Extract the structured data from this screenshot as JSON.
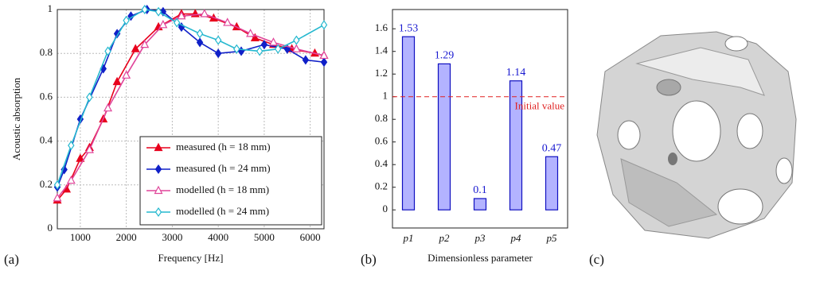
{
  "chart_data": [
    {
      "type": "line",
      "panel_label": "(a)",
      "x_label": "Frequency [Hz]",
      "y_label": "Acoustic absorption",
      "xlim": [
        500,
        6300
      ],
      "ylim": [
        0,
        1
      ],
      "xticks": [
        1000,
        2000,
        3000,
        4000,
        5000,
        6000
      ],
      "yticks": [
        0,
        0.2,
        0.4,
        0.6,
        0.8,
        1
      ],
      "grid": true,
      "legend": "lower right",
      "series": [
        {
          "name": "measured (h = 18 mm)",
          "color": "#e8001c",
          "marker": "triangle",
          "filled": true,
          "x": [
            500,
            700,
            1000,
            1200,
            1500,
            1800,
            2200,
            2700,
            3200,
            3500,
            3900,
            4400,
            4800,
            5200,
            5600,
            6100,
            6300
          ],
          "values": [
            0.13,
            0.18,
            0.32,
            0.37,
            0.5,
            0.67,
            0.82,
            0.92,
            0.98,
            0.98,
            0.96,
            0.92,
            0.87,
            0.84,
            0.82,
            0.8,
            0.79
          ]
        },
        {
          "name": "measured (h = 24 mm)",
          "color": "#1020c8",
          "marker": "diamond",
          "filled": true,
          "x": [
            500,
            650,
            1000,
            1500,
            1800,
            2100,
            2450,
            2800,
            3200,
            3600,
            4000,
            4500,
            5000,
            5500,
            5900,
            6300
          ],
          "values": [
            0.19,
            0.27,
            0.5,
            0.73,
            0.89,
            0.97,
            1.0,
            0.99,
            0.92,
            0.85,
            0.8,
            0.81,
            0.84,
            0.82,
            0.77,
            0.76
          ]
        },
        {
          "name": "modelled (h = 18 mm)",
          "color": "#e0459a",
          "marker": "triangle",
          "filled": false,
          "x": [
            500,
            800,
            1200,
            1600,
            2000,
            2400,
            2800,
            3200,
            3700,
            4200,
            4700,
            5200,
            5700,
            6300
          ],
          "values": [
            0.14,
            0.22,
            0.36,
            0.55,
            0.7,
            0.84,
            0.93,
            0.97,
            0.98,
            0.94,
            0.89,
            0.85,
            0.82,
            0.79
          ]
        },
        {
          "name": "modelled (h = 24 mm)",
          "color": "#25b8cf",
          "marker": "diamond",
          "filled": false,
          "x": [
            500,
            800,
            1200,
            1600,
            2000,
            2400,
            2700,
            3100,
            3600,
            4000,
            4400,
            4900,
            5300,
            5700,
            6300
          ],
          "values": [
            0.2,
            0.38,
            0.6,
            0.81,
            0.95,
            1.0,
            0.99,
            0.94,
            0.89,
            0.86,
            0.82,
            0.81,
            0.82,
            0.86,
            0.93
          ]
        }
      ]
    },
    {
      "type": "bar",
      "panel_label": "(b)",
      "x_label": "Dimensionless parameter",
      "categories": [
        "p1",
        "p2",
        "p3",
        "p4",
        "p5"
      ],
      "values": [
        1.53,
        1.29,
        0.1,
        1.14,
        0.47
      ],
      "color": "#b3b3ff",
      "edge_color": "#1010c0",
      "label_color": "#1a1ad0",
      "ylim": [
        -0.16,
        1.77
      ],
      "yticks": [
        0,
        0.2,
        0.4,
        0.6,
        0.8,
        1,
        1.2,
        1.4,
        1.6
      ],
      "reference_line": {
        "value": 1,
        "label": "Initial value",
        "color": "#e02020"
      }
    },
    {
      "type": "image",
      "panel_label": "(c)"
    }
  ]
}
